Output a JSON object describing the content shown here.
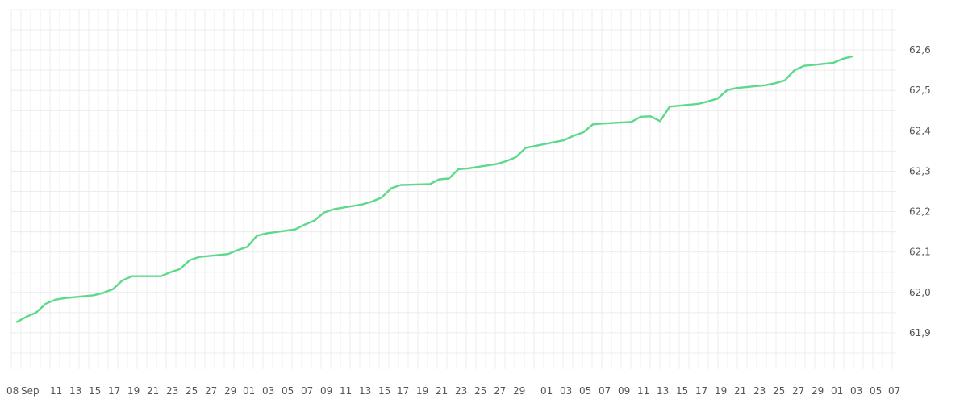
{
  "chart_data": {
    "type": "line",
    "title": "",
    "xlabel": "",
    "ylabel": "",
    "colors": {
      "line": "#5cd98a",
      "grid": "#ececec",
      "axis_text": "#555555"
    },
    "grid": true,
    "y_axis_side": "right",
    "ylim": [
      61.81,
      62.7
    ],
    "y_ticks": [
      "61,9",
      "62,0",
      "62,1",
      "62,2",
      "62,3",
      "62,4",
      "62,5",
      "62,6"
    ],
    "x_tick_labels": [
      "08",
      "Sep",
      "11",
      "13",
      "15",
      "17",
      "19",
      "21",
      "23",
      "25",
      "27",
      "29",
      "01",
      "03",
      "05",
      "07",
      "09",
      "11",
      "13",
      "15",
      "17",
      "19",
      "21",
      "23",
      "25",
      "27",
      "29",
      "01",
      "03",
      "05",
      "07",
      "09",
      "11",
      "13",
      "15",
      "17",
      "19",
      "21",
      "23",
      "25",
      "27",
      "29",
      "01",
      "03",
      "05",
      "07"
    ],
    "series": [
      {
        "x": [
          "09-08",
          "09-09",
          "09-10",
          "09-11",
          "09-12",
          "09-13",
          "09-16",
          "09-17",
          "09-18",
          "09-19",
          "09-20",
          "09-23",
          "09-24",
          "09-25",
          "09-26",
          "09-27",
          "09-30",
          "10-01",
          "10-02",
          "10-03",
          "10-04",
          "10-07",
          "10-08",
          "10-09",
          "10-10",
          "10-11",
          "10-14",
          "10-15",
          "10-16",
          "10-17",
          "10-18",
          "10-21",
          "10-22",
          "10-23",
          "10-24",
          "10-25",
          "10-28",
          "10-29",
          "10-30",
          "10-31",
          "11-04",
          "11-05",
          "11-06",
          "11-07",
          "11-08",
          "11-11",
          "11-12",
          "11-13",
          "11-14",
          "11-15",
          "11-18",
          "11-19",
          "11-20",
          "11-21",
          "11-22",
          "11-25",
          "11-26",
          "11-27",
          "11-28",
          "11-29",
          "12-02",
          "12-03",
          "12-04"
        ],
        "values": [
          61.927,
          61.94,
          61.95,
          61.972,
          61.982,
          61.986,
          61.993,
          61.999,
          62.008,
          62.03,
          62.04,
          62.04,
          62.05,
          62.058,
          62.08,
          62.088,
          62.095,
          62.105,
          62.113,
          62.14,
          62.146,
          62.156,
          62.168,
          62.178,
          62.198,
          62.206,
          62.218,
          62.225,
          62.235,
          62.258,
          62.266,
          62.268,
          62.28,
          62.282,
          62.305,
          62.307,
          62.318,
          62.325,
          62.335,
          62.358,
          62.377,
          62.388,
          62.396,
          62.416,
          62.418,
          62.422,
          62.435,
          62.436,
          62.424,
          62.46,
          62.467,
          62.473,
          62.48,
          62.501,
          62.506,
          62.513,
          62.518,
          62.525,
          62.55,
          62.561,
          62.568,
          62.578,
          62.584
        ]
      }
    ]
  }
}
